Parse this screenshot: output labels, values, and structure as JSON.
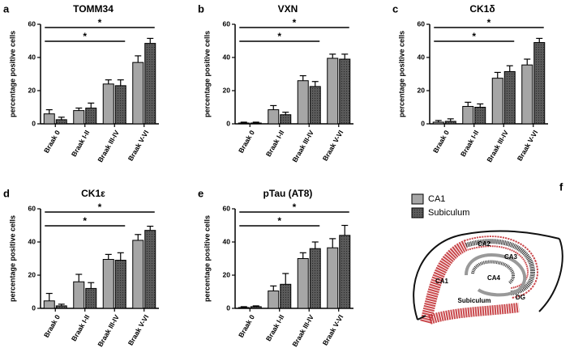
{
  "chart_data": [
    {
      "type": "bar",
      "panel": "a",
      "title": "TOMM34",
      "y_label": "percentage positive cells",
      "categories": [
        "Braak 0",
        "Braak I-II",
        "Braak III-IV",
        "Braak V-VI"
      ],
      "series": [
        {
          "values": [
            6,
            8,
            24,
            37
          ],
          "errors": [
            2.5,
            1.5,
            2.5,
            4
          ]
        },
        {
          "values": [
            2.5,
            9.5,
            23,
            48.5
          ],
          "errors": [
            1.5,
            3,
            3.5,
            3
          ]
        }
      ],
      "ylim": [
        0,
        60
      ],
      "yticks": [
        0,
        20,
        40,
        60
      ],
      "annotations": [
        {
          "label": "*",
          "from": 0,
          "to": 3
        },
        {
          "label": "*",
          "from": 0,
          "to": 2
        }
      ]
    },
    {
      "type": "bar",
      "panel": "b",
      "title": "VXN",
      "y_label": "percentage positive cells",
      "categories": [
        "Braak 0",
        "Braak I-II",
        "Braak III-IV",
        "Braak V-VI"
      ],
      "series": [
        {
          "values": [
            0.5,
            8.5,
            26,
            39.5
          ],
          "errors": [
            0.5,
            2.5,
            3,
            2.5
          ]
        },
        {
          "values": [
            0.5,
            5.5,
            22.5,
            39
          ],
          "errors": [
            0.5,
            1.5,
            3,
            3
          ]
        }
      ],
      "ylim": [
        0,
        60
      ],
      "yticks": [
        0,
        20,
        40,
        60
      ],
      "annotations": [
        {
          "label": "*",
          "from": 0,
          "to": 3
        },
        {
          "label": "*",
          "from": 0,
          "to": 2
        }
      ]
    },
    {
      "type": "bar",
      "panel": "c",
      "title": "CK1δ",
      "y_label": "percentage positive cells",
      "categories": [
        "Braak 0",
        "Braak I-II",
        "Braak III-IV",
        "Braak V-VI"
      ],
      "series": [
        {
          "values": [
            1,
            10.5,
            27.5,
            35.5
          ],
          "errors": [
            1,
            2.5,
            3.5,
            3.5
          ]
        },
        {
          "values": [
            1.5,
            10,
            31.5,
            49
          ],
          "errors": [
            1.5,
            2,
            3.5,
            2.5
          ]
        }
      ],
      "ylim": [
        0,
        60
      ],
      "yticks": [
        0,
        20,
        40,
        60
      ],
      "annotations": [
        {
          "label": "*",
          "from": 0,
          "to": 3
        },
        {
          "label": "*",
          "from": 0,
          "to": 2
        }
      ]
    },
    {
      "type": "bar",
      "panel": "d",
      "title": "CK1ε",
      "y_label": "percentage positive cells",
      "categories": [
        "Braak 0",
        "Braak I-II",
        "Braak III-IV",
        "Braak V-VI"
      ],
      "series": [
        {
          "values": [
            4.5,
            16,
            29.5,
            41
          ],
          "errors": [
            4.5,
            4.5,
            3,
            3.5
          ]
        },
        {
          "values": [
            1.5,
            12,
            29,
            47
          ],
          "errors": [
            1,
            3.5,
            4.5,
            2.5
          ]
        }
      ],
      "ylim": [
        0,
        60
      ],
      "yticks": [
        0,
        20,
        40,
        60
      ],
      "annotations": [
        {
          "label": "*",
          "from": 0,
          "to": 3
        },
        {
          "label": "*",
          "from": 0,
          "to": 2
        }
      ]
    },
    {
      "type": "bar",
      "panel": "e",
      "title": "pTau (AT8)",
      "y_label": "percentage positive cells",
      "categories": [
        "Braak 0",
        "Braak I-II",
        "Braak III-IV",
        "Braak V-VI"
      ],
      "series": [
        {
          "values": [
            0.5,
            10.5,
            30,
            36.5
          ],
          "errors": [
            0.5,
            3,
            3.5,
            5.5
          ]
        },
        {
          "values": [
            1,
            14.5,
            36,
            44
          ],
          "errors": [
            0.5,
            6.5,
            4,
            6
          ]
        }
      ],
      "ylim": [
        0,
        60
      ],
      "yticks": [
        0,
        20,
        40,
        60
      ],
      "annotations": [
        {
          "label": "*",
          "from": 0,
          "to": 3
        },
        {
          "label": "*",
          "from": 0,
          "to": 2
        }
      ]
    }
  ],
  "diagram": {
    "panel": "f",
    "legend": [
      {
        "name": "CA1",
        "color": "#a6a6a6"
      },
      {
        "name": "Subiculum",
        "color": "#5a5a5a"
      }
    ],
    "labels": [
      "CA2",
      "CA3",
      "CA4",
      "CA1",
      "Subiculum",
      "DG"
    ]
  }
}
